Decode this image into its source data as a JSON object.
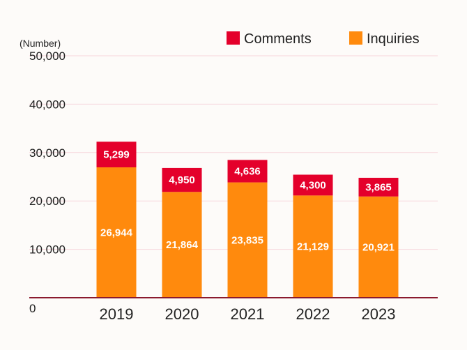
{
  "chart_data": {
    "type": "bar",
    "stacked": true,
    "unit_label": "(Number)",
    "categories": [
      "2019",
      "2020",
      "2021",
      "2022",
      "2023"
    ],
    "series": [
      {
        "name": "Inquiries",
        "color": "#ff8a0d",
        "values": [
          26944,
          21864,
          23835,
          21129,
          20921
        ],
        "labels": [
          "26,944",
          "21,864",
          "23,835",
          "21,129",
          "20,921"
        ]
      },
      {
        "name": "Comments",
        "color": "#e4002b",
        "values": [
          5299,
          4950,
          4636,
          4300,
          3865
        ],
        "labels": [
          "5,299",
          "4,950",
          "4,636",
          "4,300",
          "3,865"
        ]
      }
    ],
    "legend_order": [
      "Comments",
      "Inquiries"
    ],
    "y_ticks": [
      "0",
      "10,000",
      "20,000",
      "30,000",
      "40,000",
      "50,000"
    ],
    "y_tick_values": [
      0,
      10000,
      20000,
      30000,
      40000,
      50000
    ],
    "ylim": [
      0,
      50000
    ],
    "grid": true,
    "gridline_color": "#f6d5dc",
    "baseline_color": "#8b1a2e",
    "legend_position": "top-right"
  }
}
